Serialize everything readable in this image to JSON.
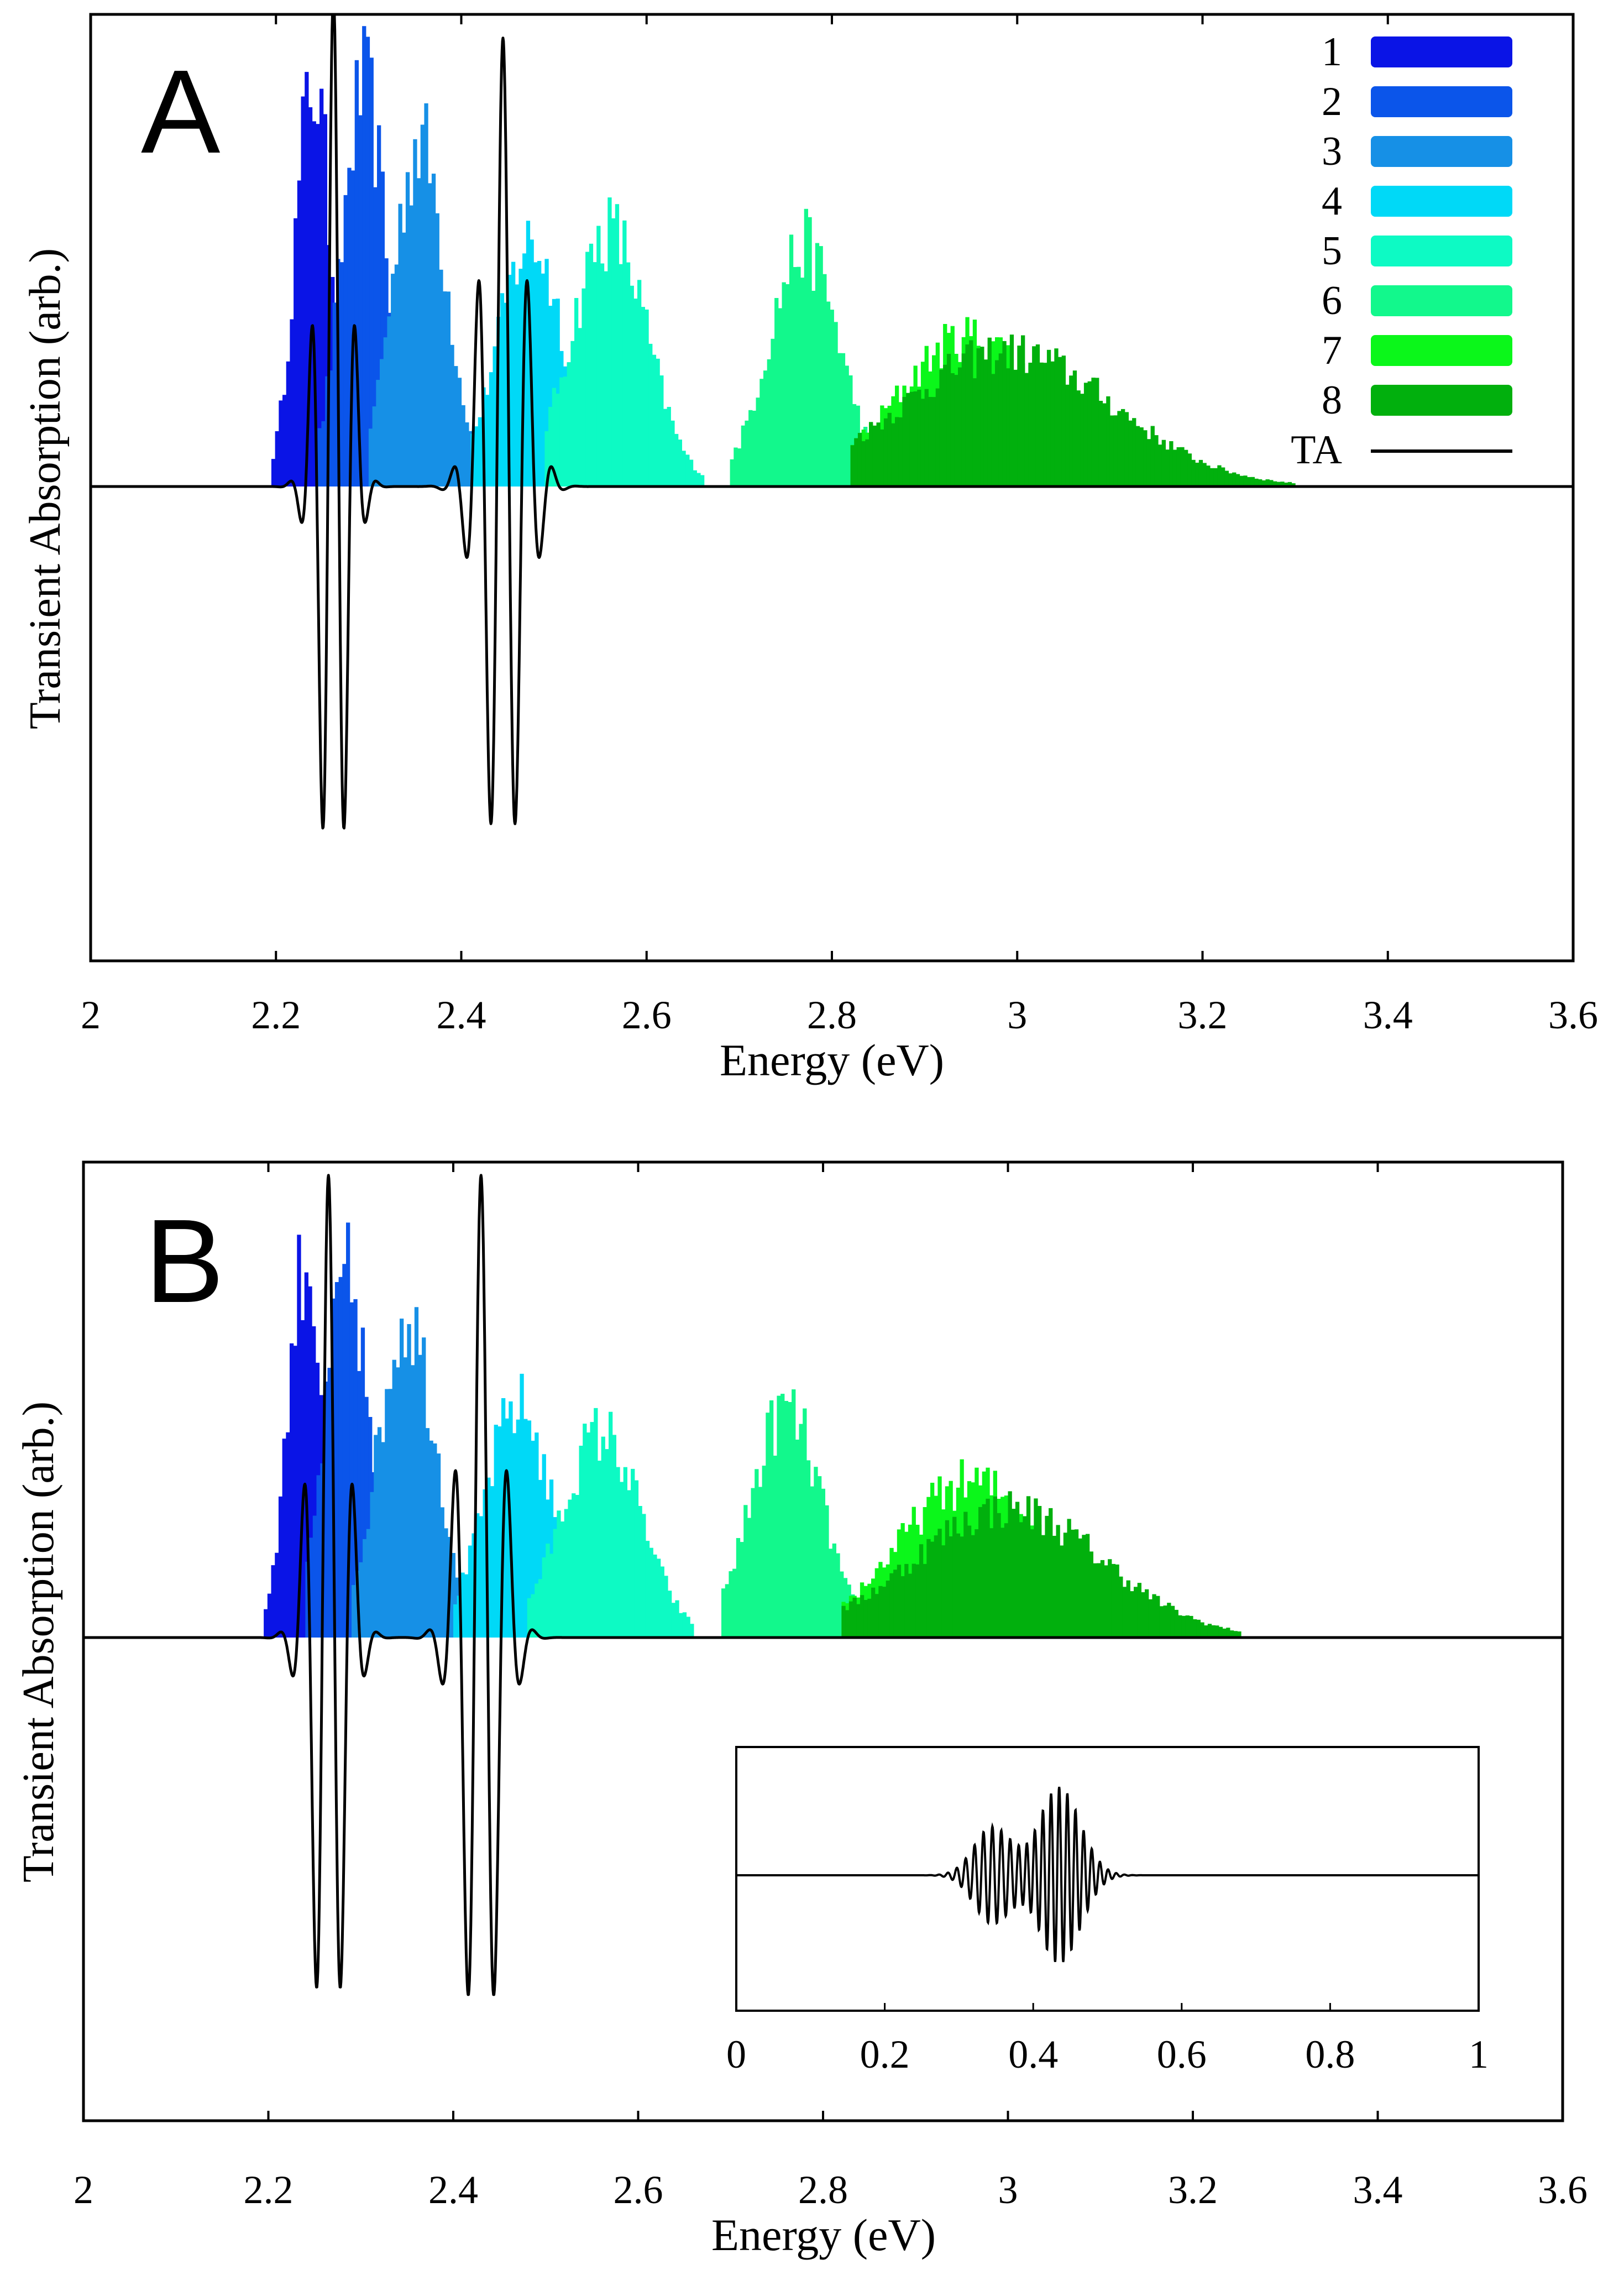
{
  "chart_data": [
    {
      "type": "bar",
      "panel_label": "A",
      "xlabel": "Energy (eV)",
      "ylabel": "Transient Absorption (arb.)",
      "xlim": [
        2.0,
        3.6
      ],
      "ylim": [
        -1.1,
        1.0
      ],
      "xticks": [
        "2",
        "2.2",
        "2.4",
        "2.6",
        "2.8",
        "3",
        "3.2",
        "3.4",
        "3.6"
      ],
      "xtick_values": [
        2.0,
        2.2,
        2.4,
        2.6,
        2.8,
        3.0,
        3.2,
        3.4,
        3.6
      ],
      "legend_position": "top-right",
      "series": [
        {
          "name": "1",
          "kind": "histogram",
          "color": "#0a14e6",
          "center": 2.24,
          "range": [
            2.195,
            2.275
          ],
          "peak": 1.0
        },
        {
          "name": "2",
          "kind": "histogram",
          "color": "#0b55ea",
          "center": 2.295,
          "range": [
            2.245,
            2.345
          ],
          "peak": 0.98
        },
        {
          "name": "3",
          "kind": "histogram",
          "color": "#1690e6",
          "center": 2.355,
          "range": [
            2.3,
            2.42
          ],
          "peak": 0.85
        },
        {
          "name": "4",
          "kind": "histogram",
          "color": "#00d9f7",
          "center": 2.475,
          "range": [
            2.41,
            2.56
          ],
          "peak": 0.6
        },
        {
          "name": "5",
          "kind": "histogram",
          "color": "#0dfac4",
          "center": 2.56,
          "range": [
            2.49,
            2.66
          ],
          "peak": 0.63
        },
        {
          "name": "6",
          "kind": "histogram",
          "color": "#12f88c",
          "center": 2.77,
          "range": [
            2.69,
            2.85
          ],
          "peak": 0.59
        },
        {
          "name": "7",
          "kind": "histogram",
          "color": "#0bf71a",
          "center": 2.95,
          "range": [
            2.82,
            3.15
          ],
          "peak": 0.37
        },
        {
          "name": "8",
          "kind": "histogram",
          "color": "#01b00d",
          "center": 2.99,
          "range": [
            2.82,
            3.3
          ],
          "peak": 0.33
        },
        {
          "name": "TA",
          "kind": "line",
          "color": "#000000",
          "wavepackets": [
            {
              "center": 2.262,
              "envelope_width": 0.022,
              "spacing": 0.024,
              "amplitude": 1.05
            },
            {
              "center": 2.445,
              "envelope_width": 0.03,
              "spacing": 0.027,
              "amplitude": 0.95
            }
          ],
          "min_points": [
            [
              2.245,
              -0.47
            ],
            [
              2.267,
              -1.1
            ],
            [
              2.43,
              -0.85
            ],
            [
              2.46,
              -0.93
            ]
          ],
          "max_points": [
            [
              2.25,
              0.87
            ],
            [
              2.42,
              0.55
            ],
            [
              2.475,
              0.55
            ]
          ]
        }
      ]
    },
    {
      "type": "bar",
      "panel_label": "B",
      "xlabel": "Energy (eV)",
      "ylabel": "Transient Absorption (arb.)",
      "xlim": [
        2.0,
        3.6
      ],
      "ylim": [
        -1.1,
        1.08
      ],
      "xticks": [
        "2",
        "2.2",
        "2.4",
        "2.6",
        "2.8",
        "3",
        "3.2",
        "3.4",
        "3.6"
      ],
      "xtick_values": [
        2.0,
        2.2,
        2.4,
        2.6,
        2.8,
        3.0,
        3.2,
        3.4,
        3.6
      ],
      "series": [
        {
          "name": "1",
          "kind": "histogram",
          "color": "#0a14e6",
          "center": 2.24,
          "range": [
            2.195,
            2.275
          ],
          "peak": 1.0
        },
        {
          "name": "2",
          "kind": "histogram",
          "color": "#0b55ea",
          "center": 2.285,
          "range": [
            2.24,
            2.34
          ],
          "peak": 0.95
        },
        {
          "name": "3",
          "kind": "histogram",
          "color": "#1690e6",
          "center": 2.35,
          "range": [
            2.29,
            2.42
          ],
          "peak": 0.85
        },
        {
          "name": "4",
          "kind": "histogram",
          "color": "#00d9f7",
          "center": 2.47,
          "range": [
            2.4,
            2.55
          ],
          "peak": 0.61
        },
        {
          "name": "5",
          "kind": "histogram",
          "color": "#0dfac4",
          "center": 2.56,
          "range": [
            2.48,
            2.66
          ],
          "peak": 0.54
        },
        {
          "name": "6",
          "kind": "histogram",
          "color": "#12f88c",
          "center": 2.76,
          "range": [
            2.69,
            2.85
          ],
          "peak": 0.6
        },
        {
          "name": "7",
          "kind": "histogram",
          "color": "#0bf71a",
          "center": 2.96,
          "range": [
            2.82,
            3.15
          ],
          "peak": 0.41
        },
        {
          "name": "8",
          "kind": "histogram",
          "color": "#01b00d",
          "center": 3.0,
          "range": [
            2.82,
            3.25
          ],
          "peak": 0.34
        },
        {
          "name": "TA",
          "kind": "line",
          "color": "#000000",
          "wavepackets": [
            {
              "center": 2.265,
              "envelope_width": 0.025,
              "spacing": 0.027,
              "amplitude": 1.05
            },
            {
              "center": 2.43,
              "envelope_width": 0.028,
              "spacing": 0.029,
              "amplitude": 1.05
            }
          ],
          "min_points": [
            [
              2.265,
              -0.85
            ],
            [
              2.29,
              -1.0
            ],
            [
              2.41,
              -0.62
            ],
            [
              2.455,
              -1.1
            ]
          ],
          "max_points": [
            [
              2.255,
              0.85
            ],
            [
              2.28,
              1.08
            ],
            [
              2.412,
              0.97
            ],
            [
              2.44,
              1.03
            ]
          ]
        }
      ],
      "inset": {
        "type": "line",
        "xlim": [
          0,
          1
        ],
        "xticks": [
          "0",
          "0.2",
          "0.4",
          "0.6",
          "0.8",
          "1"
        ],
        "xtick_values": [
          0,
          0.2,
          0.4,
          0.6,
          0.8,
          1
        ],
        "wavepackets": [
          {
            "center": 0.345,
            "envelope_width": 0.035,
            "spacing": 0.012,
            "amplitude": 0.55
          },
          {
            "center": 0.435,
            "envelope_width": 0.04,
            "spacing": 0.011,
            "amplitude": 1.0
          }
        ]
      }
    }
  ]
}
